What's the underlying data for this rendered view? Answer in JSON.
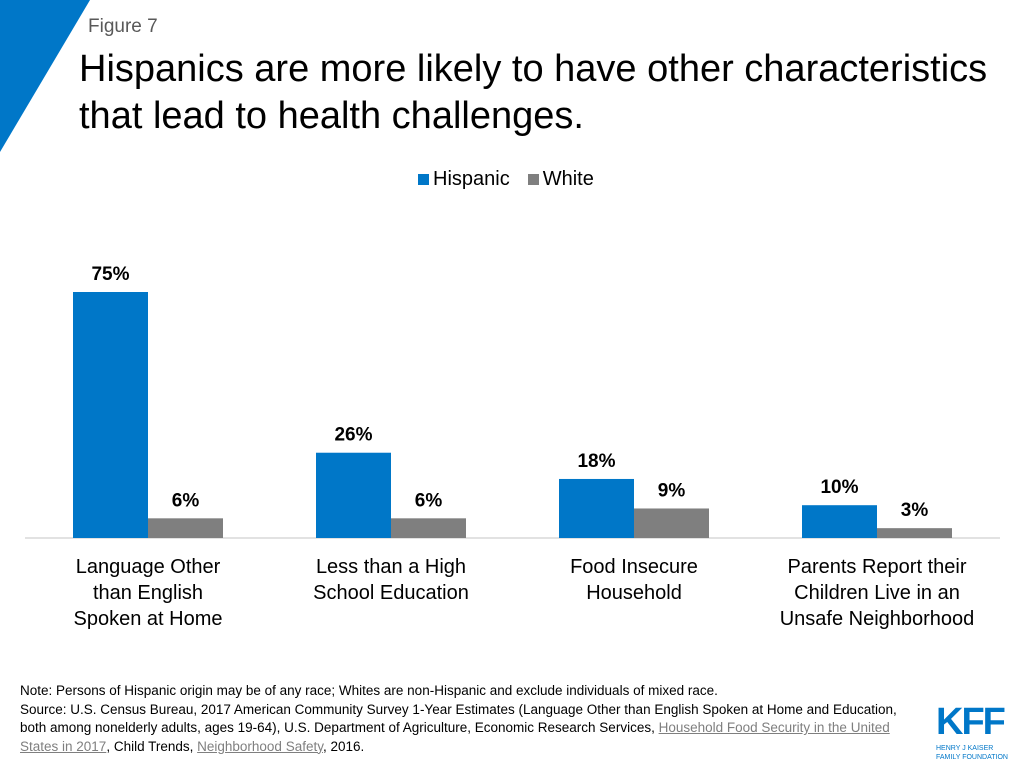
{
  "figure_label": "Figure 7",
  "title": "Hispanics are more likely to have other characteristics that lead to health challenges.",
  "colors": {
    "hispanic": "#0077c8",
    "white": "#7f7f7f",
    "accent": "#0077c8"
  },
  "chart_data": {
    "type": "bar",
    "categories": [
      "Language Other than English Spoken at Home",
      "Less than a High School Education",
      "Food Insecure Household",
      "Parents Report their Children Live in an Unsafe Neighborhood"
    ],
    "category_lines": [
      [
        "Language Other",
        "than English",
        "Spoken at Home"
      ],
      [
        "Less than a High",
        "School Education"
      ],
      [
        "Food Insecure",
        "Household"
      ],
      [
        "Parents Report their",
        "Children Live in an",
        "Unsafe Neighborhood"
      ]
    ],
    "series": [
      {
        "name": "Hispanic",
        "values": [
          75,
          26,
          18,
          10
        ],
        "labels": [
          "75%",
          "26%",
          "18%",
          "10%"
        ]
      },
      {
        "name": "White",
        "values": [
          6,
          6,
          9,
          3
        ],
        "labels": [
          "6%",
          "6%",
          "9%",
          "3%"
        ]
      }
    ],
    "ylim": [
      0,
      80
    ],
    "legend": "top-center",
    "grid": false
  },
  "footer": {
    "note": "Note: Persons of Hispanic origin may be of any race; Whites are non-Hispanic and exclude individuals of mixed race.",
    "source_prefix": "Source: U.S. Census Bureau, 2017 American Community Survey 1-Year Estimates (Language Other than English Spoken at Home and Education, both among nonelderly adults, ages 19-64), U.S. Department of Agriculture, Economic Research Services, ",
    "link1": "Household Food Security in the United States in 2017",
    "mid": ", Child Trends, ",
    "link2": "Neighborhood Safety",
    "suffix": ", 2016."
  },
  "logo": {
    "text": "KFF",
    "sub1": "HENRY J KAISER",
    "sub2": "FAMILY FOUNDATION"
  }
}
